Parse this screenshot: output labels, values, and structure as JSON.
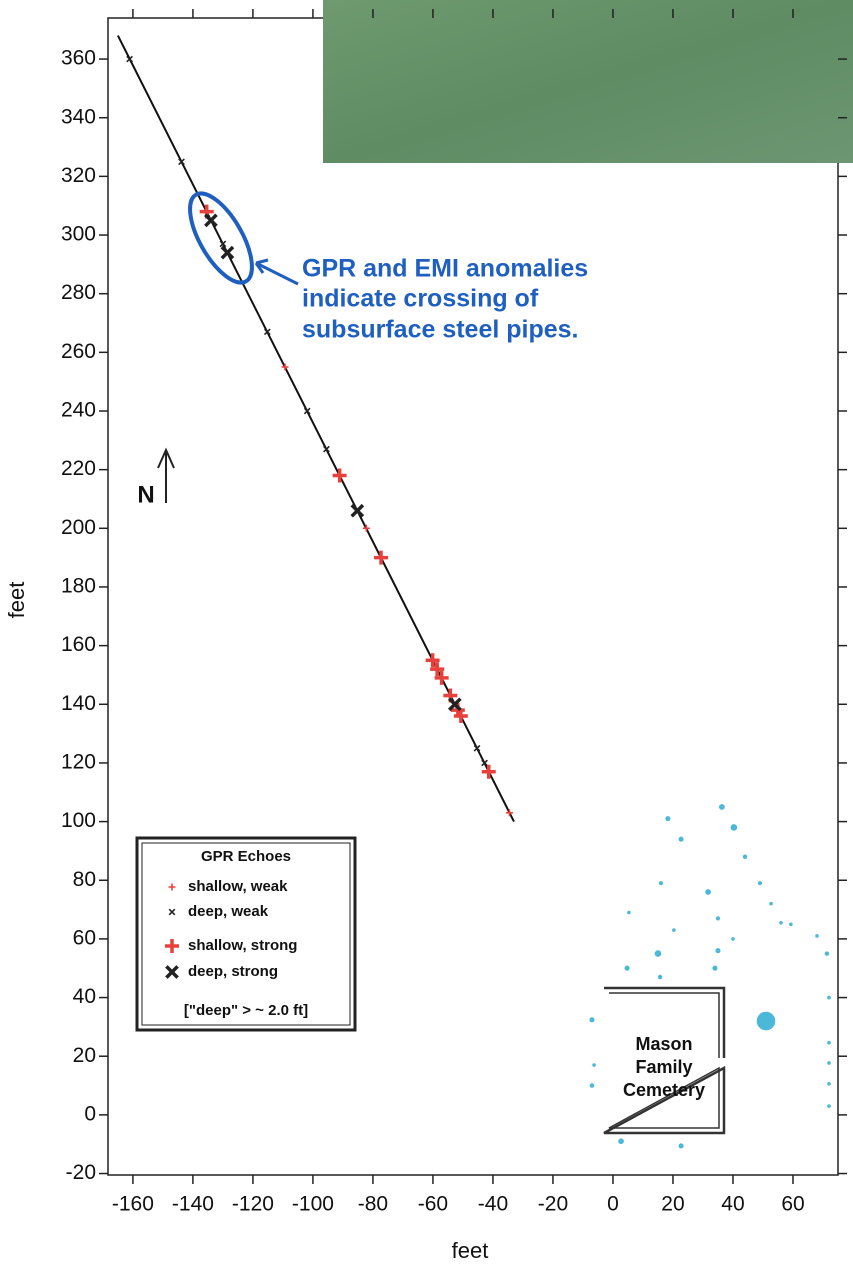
{
  "chart_data": {
    "type": "scatter",
    "xlabel": "feet",
    "ylabel": "feet",
    "xlim": [
      -168.3,
      75
    ],
    "ylim": [
      -20.5,
      374
    ],
    "xticks": [
      -160,
      -140,
      -120,
      -100,
      -80,
      -60,
      -40,
      -20,
      0,
      20,
      40,
      60
    ],
    "yticks": [
      -20,
      0,
      20,
      40,
      60,
      80,
      100,
      120,
      140,
      160,
      180,
      200,
      220,
      240,
      260,
      280,
      300,
      320,
      340,
      360
    ],
    "line": {
      "color": "#111111",
      "x": [
        -165,
        -33
      ],
      "y": [
        368,
        100
      ]
    },
    "series": [
      {
        "name": "shallow, weak",
        "color": "#e8413c",
        "marker": "plus",
        "strong": false,
        "x": [
          -109.3,
          -82.2,
          -34.5,
          -59.1
        ],
        "y": [
          255,
          200,
          103,
          153
        ]
      },
      {
        "name": "deep, weak",
        "color": "#222222",
        "marker": "x",
        "strong": false,
        "x": [
          -161.1,
          -143.8,
          -130.0,
          -115.2,
          -101.9,
          -95.5,
          -45.3,
          -42.8
        ],
        "y": [
          360,
          325,
          297,
          267,
          240,
          227,
          125,
          120
        ]
      },
      {
        "name": "shallow, strong",
        "color": "#e8413c",
        "marker": "plus",
        "strong": true,
        "x": [
          -135.4,
          -91.1,
          -77.3,
          -60.1,
          -58.6,
          -57.1,
          -54.2,
          -51.7,
          -50.7,
          -41.4
        ],
        "y": [
          308,
          218,
          190,
          155,
          152,
          149,
          143,
          138,
          136,
          117
        ]
      },
      {
        "name": "deep, strong",
        "color": "#222222",
        "marker": "x",
        "strong": true,
        "x": [
          -134.0,
          -128.5,
          -85.2,
          -52.7
        ],
        "y": [
          305,
          294,
          206,
          140
        ]
      }
    ],
    "legend_title": "GPR Echoes",
    "legend_note": "[\"deep\" > ~ 2.0 ft]",
    "trees": {
      "color": "#4bb8d8",
      "x": [
        18.3,
        36.3,
        40.3,
        22.7,
        44,
        16,
        31.7,
        49,
        5.3,
        35,
        52.7,
        56,
        59.3,
        20.3,
        15,
        35,
        40,
        68,
        71.3,
        4.7,
        15.7,
        34,
        51,
        -7,
        -6.3,
        -7,
        72,
        72,
        72,
        72,
        72,
        2.7,
        22.7
      ],
      "y": [
        101,
        105,
        98,
        94,
        88,
        79,
        76,
        79,
        69,
        67,
        72,
        65.5,
        65,
        63,
        55,
        56,
        60,
        61,
        55,
        50,
        47,
        50,
        32,
        32.4,
        17,
        10,
        40,
        24.6,
        17.7,
        10.6,
        3,
        -9,
        -10.6
      ],
      "size": [
        1.5,
        1.7,
        2,
        1.5,
        1.3,
        1.2,
        1.7,
        1.2,
        1,
        1.2,
        1,
        1,
        1,
        1,
        2,
        1.5,
        1,
        1,
        1.3,
        1.5,
        1.3,
        1.5,
        6,
        1.5,
        1,
        1.3,
        1,
        1,
        1,
        1,
        1,
        1.7,
        1.5
      ]
    },
    "cemetery_label": [
      "Mason",
      "Family",
      "Cemetery"
    ],
    "annotation": [
      "GPR and EMI anomalies",
      "indicate crossing of",
      "subsurface steel pipes."
    ],
    "north_label": "N"
  }
}
